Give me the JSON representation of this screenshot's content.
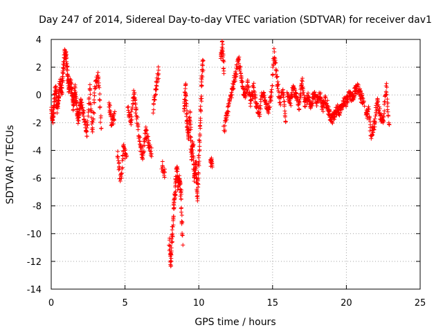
{
  "chart_data": {
    "type": "scatter",
    "title": "Day 247 of 2014, Sidereal Day-to-day VTEC variation (SDTVAR) for receiver dav1",
    "xlabel": "GPS time / hours",
    "ylabel": "SDTVAR / TECUs",
    "xlim": [
      0,
      25
    ],
    "ylim": [
      -14,
      4
    ],
    "xticks": [
      "0",
      "5",
      "10",
      "15",
      "20",
      "25"
    ],
    "yticks": [
      "4",
      "2",
      "0",
      "-2",
      "-4",
      "-6",
      "-8",
      "-10",
      "-12",
      "-14"
    ],
    "grid": true,
    "marker": "+",
    "color": "#ff0000",
    "series": [
      {
        "name": "SDTVAR",
        "segments": [
          {
            "x": [
              0.0,
              0.1,
              0.2,
              0.3,
              0.4,
              0.5,
              0.6,
              0.7,
              0.8,
              0.9,
              1.0,
              1.1,
              1.2,
              1.3,
              1.4,
              1.5,
              1.6,
              1.7,
              1.8,
              1.9,
              2.0
            ],
            "y": [
              -1.2,
              -1.8,
              -0.5,
              0.5,
              -1.0,
              -0.3,
              0.8,
              0.2,
              1.5,
              3.0,
              2.8,
              1.5,
              0.5,
              1.0,
              0.2,
              -0.8,
              0.5,
              -0.5,
              -1.8,
              -1.2,
              -0.5
            ]
          },
          {
            "x": [
              2.0,
              2.2,
              2.4,
              2.6,
              2.8,
              3.0,
              3.2,
              3.4
            ],
            "y": [
              -0.5,
              -1.5,
              -2.8,
              0.5,
              -2.5,
              0.8,
              1.5,
              -2.5
            ]
          },
          {
            "x": [
              3.9,
              4.1,
              4.3
            ],
            "y": [
              -0.5,
              -2.0,
              -1.5
            ]
          },
          {
            "x": [
              4.5,
              4.7,
              4.9,
              5.1
            ],
            "y": [
              -4.0,
              -6.2,
              -3.8,
              -4.5
            ]
          },
          {
            "x": [
              5.2,
              5.4,
              5.6,
              5.8,
              6.0,
              6.2,
              6.4,
              6.6,
              6.8
            ],
            "y": [
              -1.0,
              -2.0,
              0.2,
              -1.5,
              -3.5,
              -4.5,
              -2.5,
              -3.5,
              -4.2
            ]
          },
          {
            "x": [
              6.9,
              7.1,
              7.3
            ],
            "y": [
              -1.0,
              0.5,
              1.8
            ]
          },
          {
            "x": [
              7.5,
              7.7
            ],
            "y": [
              -5.0,
              -5.8
            ]
          },
          {
            "x": [
              8.0,
              8.1,
              8.2,
              8.3,
              8.4,
              8.5,
              8.6,
              8.7,
              8.8,
              8.9
            ],
            "y": [
              -10.5,
              -12.2,
              -10.0,
              -8.0,
              -7.0,
              -5.2,
              -6.5,
              -6.0,
              -7.2,
              -10.5
            ]
          },
          {
            "x": [
              9.0,
              9.1,
              9.2,
              9.3,
              9.4,
              9.5,
              9.6,
              9.7,
              9.8,
              9.9,
              10.0,
              10.1,
              10.2,
              10.3
            ],
            "y": [
              -1.0,
              0.5,
              -2.0,
              -3.0,
              -1.5,
              -4.5,
              -3.5,
              -6.0,
              -5.0,
              -7.5,
              -5.0,
              -2.0,
              1.0,
              2.5
            ]
          },
          {
            "x": [
              10.8,
              10.9
            ],
            "y": [
              -4.8,
              -5.0
            ]
          },
          {
            "x": [
              11.5,
              11.6,
              11.7
            ],
            "y": [
              2.5,
              3.8,
              1.5
            ]
          },
          {
            "x": [
              11.7,
              11.9,
              12.1,
              12.3,
              12.5,
              12.7,
              12.9,
              13.1,
              13.3,
              13.5,
              13.7,
              13.9,
              14.1,
              14.3,
              14.5,
              14.7,
              14.9,
              15.1,
              15.3,
              15.5,
              15.7,
              15.9
            ],
            "y": [
              -2.5,
              -1.5,
              -0.5,
              0.5,
              1.5,
              2.5,
              1.0,
              0.0,
              0.8,
              -0.5,
              0.5,
              -0.8,
              -1.5,
              0.2,
              -0.5,
              -1.0,
              -0.2,
              3.0,
              1.0,
              -0.5,
              0.3,
              -2.0
            ]
          },
          {
            "x": [
              16.0,
              16.2,
              16.4,
              16.6,
              16.8,
              17.0,
              17.2,
              17.4,
              17.6,
              17.8,
              18.0,
              18.2,
              18.4,
              18.6,
              18.8,
              19.0,
              19.2,
              19.4,
              19.6,
              19.8,
              20.0,
              20.2,
              20.4,
              20.6,
              20.8,
              21.0,
              21.2
            ],
            "y": [
              0.0,
              -0.5,
              0.5,
              -0.2,
              -0.8,
              1.0,
              -0.5,
              -0.2,
              -1.0,
              0.2,
              -0.5,
              0.0,
              -1.0,
              -0.3,
              -1.2,
              -1.8,
              -1.5,
              -1.0,
              -1.2,
              -0.5,
              -0.5,
              0.0,
              -0.2,
              0.3,
              0.5,
              -0.2,
              -0.5
            ]
          },
          {
            "x": [
              21.3,
              21.5,
              21.7,
              21.9,
              22.1,
              22.3,
              22.5,
              22.7,
              22.9
            ],
            "y": [
              -1.5,
              -1.2,
              -3.0,
              -2.0,
              -0.5,
              -1.5,
              -2.0,
              0.5,
              -2.3
            ]
          }
        ]
      }
    ]
  }
}
